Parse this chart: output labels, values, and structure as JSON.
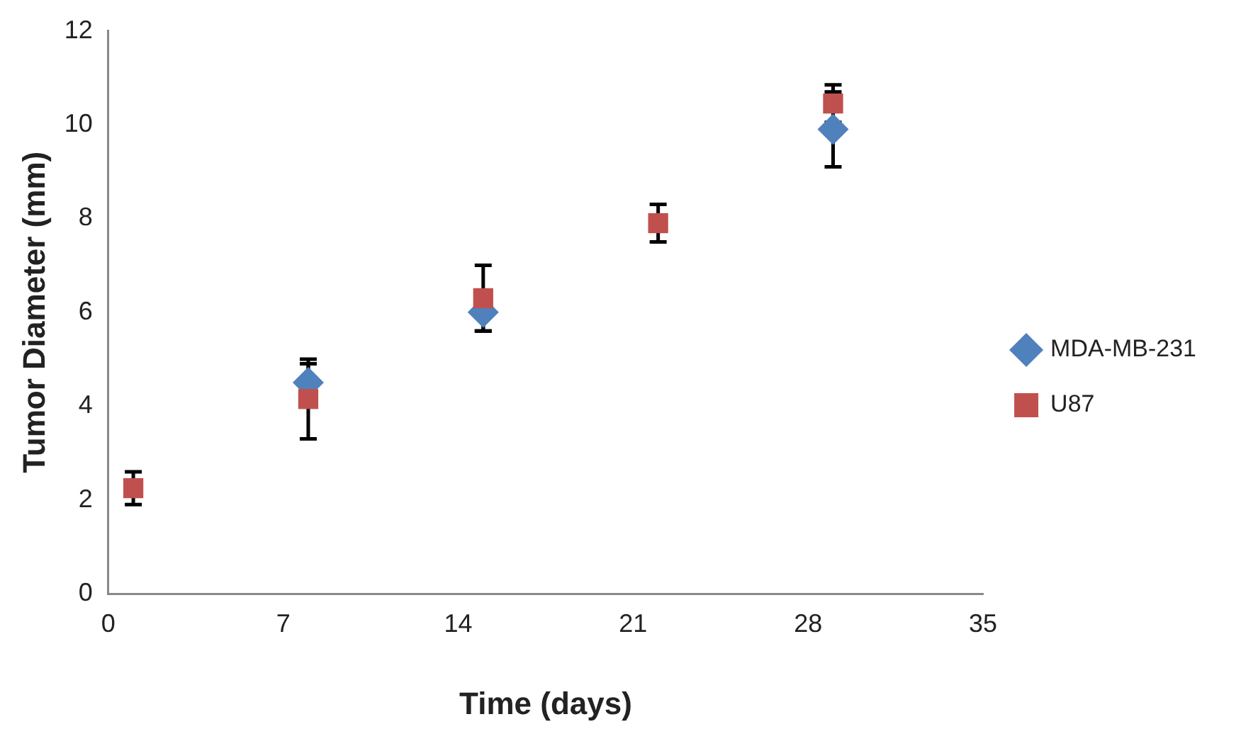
{
  "chart_data": {
    "type": "scatter",
    "xlabel": "Time (days)",
    "ylabel": "Tumor Diameter (mm)",
    "x": [
      1,
      8,
      15,
      22,
      29
    ],
    "series": [
      {
        "name": "MDA-MB-231",
        "color": "#4f81bd",
        "marker": "diamond",
        "values": [
          null,
          4.5,
          6.0,
          null,
          9.9
        ],
        "errors": [
          null,
          0.4,
          0.4,
          null,
          0.8
        ]
      },
      {
        "name": "U87",
        "color": "#c0504d",
        "marker": "square",
        "values": [
          2.25,
          4.15,
          6.3,
          7.9,
          10.45
        ],
        "errors": [
          0.35,
          0.85,
          0.7,
          0.4,
          0.4
        ]
      }
    ],
    "xlim": [
      0,
      35
    ],
    "xticks": [
      0,
      7,
      14,
      21,
      28,
      35
    ],
    "ylim": [
      0,
      12
    ],
    "yticks": [
      0,
      2,
      4,
      6,
      8,
      10,
      12
    ],
    "grid": false,
    "legend": "right"
  }
}
